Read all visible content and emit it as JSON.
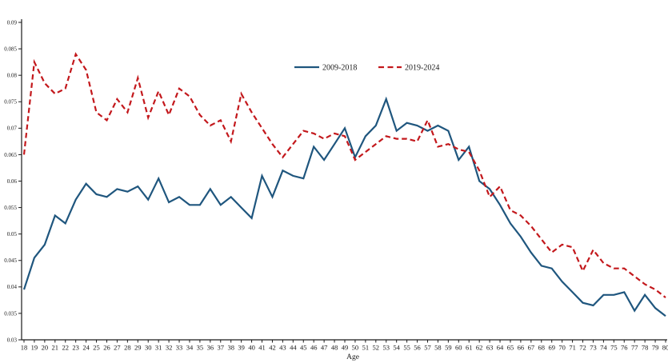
{
  "chart_data": {
    "type": "line",
    "title": "",
    "xlabel": "Age",
    "ylabel": "",
    "ylim": [
      0.03,
      0.09
    ],
    "y_tick_step": 0.005,
    "grid": false,
    "legend_position": "top-center",
    "axis_color": "#1a1a1a",
    "ages": [
      18,
      19,
      20,
      21,
      22,
      23,
      24,
      25,
      26,
      27,
      28,
      29,
      30,
      31,
      32,
      33,
      34,
      35,
      36,
      37,
      38,
      39,
      40,
      41,
      42,
      43,
      44,
      45,
      46,
      47,
      48,
      49,
      50,
      51,
      52,
      53,
      54,
      55,
      56,
      57,
      58,
      59,
      60,
      61,
      62,
      63,
      64,
      65,
      66,
      67,
      68,
      69,
      70,
      71,
      72,
      73,
      74,
      75,
      76,
      77,
      78,
      79,
      80
    ],
    "series": [
      {
        "name": "2009-2018",
        "color": "#1f567e",
        "style": "solid",
        "values": [
          0.0395,
          0.0455,
          0.048,
          0.0535,
          0.052,
          0.0565,
          0.0595,
          0.0575,
          0.057,
          0.0585,
          0.058,
          0.059,
          0.0565,
          0.0605,
          0.056,
          0.057,
          0.0555,
          0.0555,
          0.0585,
          0.0555,
          0.057,
          0.055,
          0.053,
          0.061,
          0.057,
          0.062,
          0.061,
          0.0605,
          0.0665,
          0.064,
          0.067,
          0.07,
          0.0645,
          0.0685,
          0.0705,
          0.0755,
          0.0695,
          0.071,
          0.0705,
          0.0695,
          0.0705,
          0.0695,
          0.064,
          0.0665,
          0.06,
          0.0585,
          0.0555,
          0.052,
          0.0495,
          0.0465,
          0.044,
          0.0435,
          0.041,
          0.039,
          0.037,
          0.0365,
          0.0385,
          0.0385,
          0.039,
          0.0355,
          0.0385,
          0.036,
          0.0345
        ]
      },
      {
        "name": "2019-2024",
        "color": "#c3181c",
        "style": "dashed",
        "values": [
          0.065,
          0.0825,
          0.0785,
          0.0765,
          0.0775,
          0.084,
          0.081,
          0.073,
          0.0715,
          0.0755,
          0.073,
          0.0795,
          0.072,
          0.077,
          0.0725,
          0.0775,
          0.076,
          0.0725,
          0.0705,
          0.0715,
          0.0675,
          0.0765,
          0.073,
          0.07,
          0.067,
          0.0645,
          0.067,
          0.0695,
          0.069,
          0.068,
          0.069,
          0.0685,
          0.064,
          0.0655,
          0.067,
          0.0685,
          0.068,
          0.068,
          0.0675,
          0.0715,
          0.0665,
          0.067,
          0.066,
          0.0655,
          0.062,
          0.057,
          0.059,
          0.0545,
          0.0535,
          0.0515,
          0.049,
          0.0465,
          0.048,
          0.0475,
          0.043,
          0.047,
          0.0445,
          0.0435,
          0.0435,
          0.042,
          0.0405,
          0.0395,
          0.038
        ]
      }
    ]
  }
}
